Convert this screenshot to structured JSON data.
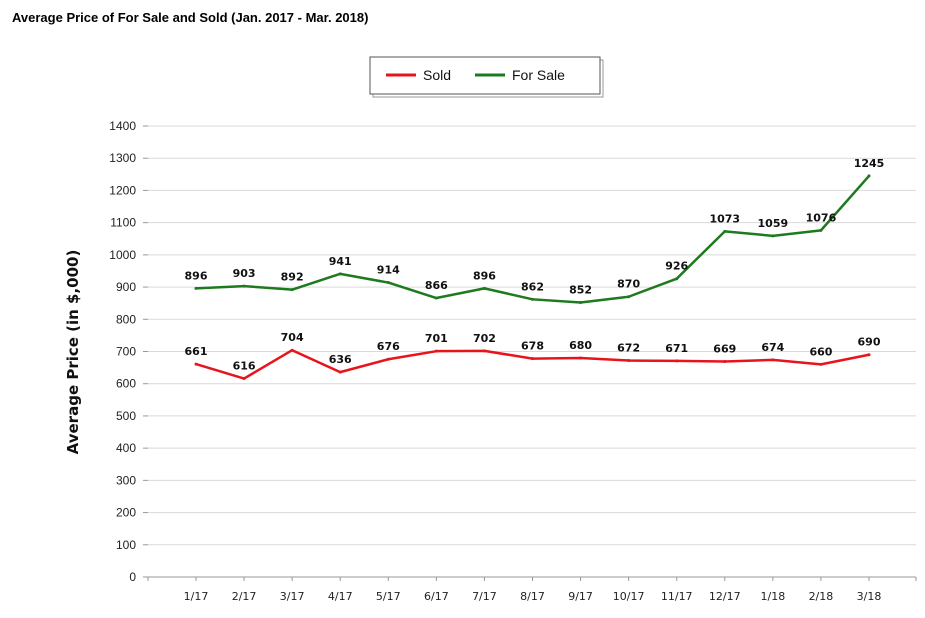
{
  "title": "Average Price of For Sale and Sold (Jan. 2017 - Mar. 2018)",
  "chart_data": {
    "type": "line",
    "title": "Average Price of For Sale and Sold (Jan. 2017 - Mar. 2018)",
    "xlabel": "",
    "ylabel": "Average Price (in $,000)",
    "ylim": [
      0,
      1400
    ],
    "yticks": [
      0,
      100,
      200,
      300,
      400,
      500,
      600,
      700,
      800,
      900,
      1000,
      1100,
      1200,
      1300,
      1400
    ],
    "categories": [
      "1/17",
      "2/17",
      "3/17",
      "4/17",
      "5/17",
      "6/17",
      "7/17",
      "8/17",
      "9/17",
      "10/17",
      "11/17",
      "12/17",
      "1/18",
      "2/18",
      "3/18"
    ],
    "grid": true,
    "legend_position": "top-center",
    "series": [
      {
        "name": "Sold",
        "color": "#e8141b",
        "values": [
          661,
          616,
          704,
          636,
          676,
          701,
          702,
          678,
          680,
          672,
          671,
          669,
          674,
          660,
          690
        ]
      },
      {
        "name": "For Sale",
        "color": "#1e7a1e",
        "values": [
          896,
          903,
          892,
          941,
          914,
          866,
          896,
          862,
          852,
          870,
          926,
          1073,
          1059,
          1076,
          1245
        ]
      }
    ]
  }
}
